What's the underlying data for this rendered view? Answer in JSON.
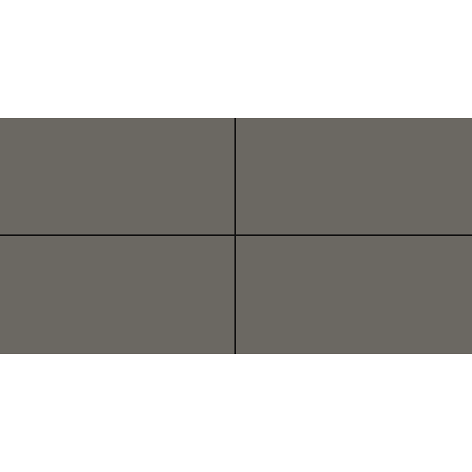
{
  "colors": {
    "background": "#ffffff",
    "panel": "#6b6862",
    "divider": "#111111"
  },
  "grid": {
    "rows": 2,
    "columns": 2
  }
}
